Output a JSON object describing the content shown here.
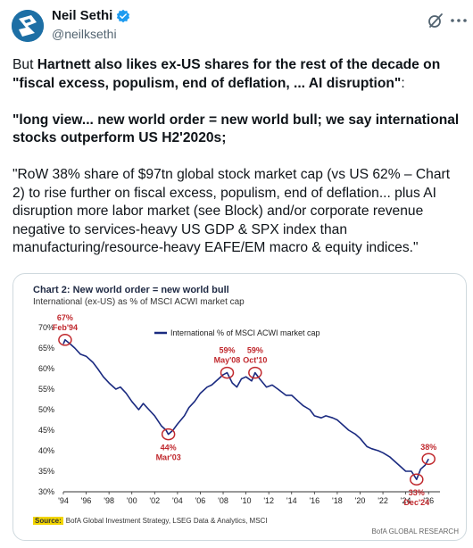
{
  "author": {
    "name": "Neil Sethi",
    "handle": "@neilksethi"
  },
  "tweet": {
    "p1_prefix": "But ",
    "p1_bold": "Hartnett also likes ex-US shares for the rest of the decade on \"fiscal excess, populism, end of deflation, ... AI disruption\"",
    "p1_suffix": ":",
    "p2_bold": "\"long view... new world order = new world bull; we say international stocks outperform US H2'2020s;",
    "p3": "\"RoW 38% share of $97tn global stock market cap (vs US 62% – Chart 2) to rise further on fiscal excess, populism, end of deflation... plus AI disruption more labor market (see Block) and/or corporate revenue negative to services-heavy US GDP & SPX index than manufacturing/resource-heavy EAFE/EM macro & equity indices.\""
  },
  "chart": {
    "title": "Chart 2: New world order = new world bull",
    "subtitle": "International (ex-US) as % of MSCI ACWI market cap",
    "source_label": "Source:",
    "source_text": "BofA Global Investment Strategy, LSEG Data & Analytics, MSCI",
    "credit": "BofA GLOBAL RESEARCH"
  },
  "colors": {
    "line": "#1a2a80",
    "annotation": "#c0282d",
    "verified": "#1d9bf0",
    "source_highlight": "#f2d500"
  },
  "chart_data": {
    "type": "line",
    "title": "Chart 2: New world order = new world bull",
    "subtitle": "International (ex-US) as % of MSCI ACWI market cap",
    "series": [
      {
        "name": "International % of MSCI ACWI market cap",
        "points": [
          [
            1994.0,
            66
          ],
          [
            1994.15,
            67
          ],
          [
            1994.6,
            66
          ],
          [
            1995.0,
            65
          ],
          [
            1995.5,
            63.5
          ],
          [
            1996.0,
            63
          ],
          [
            1996.6,
            61.5
          ],
          [
            1997.0,
            60
          ],
          [
            1997.5,
            58
          ],
          [
            1998.0,
            56.5
          ],
          [
            1998.6,
            55
          ],
          [
            1999.0,
            55.5
          ],
          [
            1999.5,
            54
          ],
          [
            2000.0,
            52
          ],
          [
            2000.6,
            50
          ],
          [
            2001.0,
            51.5
          ],
          [
            2001.5,
            50
          ],
          [
            2002.0,
            48.5
          ],
          [
            2002.6,
            46
          ],
          [
            2003.0,
            45
          ],
          [
            2003.2,
            44
          ],
          [
            2003.6,
            45
          ],
          [
            2004.0,
            46.5
          ],
          [
            2004.6,
            48.5
          ],
          [
            2005.0,
            50.5
          ],
          [
            2005.5,
            52
          ],
          [
            2006.0,
            54
          ],
          [
            2006.6,
            55.5
          ],
          [
            2007.0,
            56
          ],
          [
            2007.6,
            57.5
          ],
          [
            2008.0,
            58.5
          ],
          [
            2008.35,
            59
          ],
          [
            2008.8,
            56.5
          ],
          [
            2009.2,
            55.5
          ],
          [
            2009.6,
            57.5
          ],
          [
            2010.0,
            58
          ],
          [
            2010.5,
            57
          ],
          [
            2010.8,
            59
          ],
          [
            2011.2,
            57.5
          ],
          [
            2011.8,
            55.5
          ],
          [
            2012.3,
            56
          ],
          [
            2012.8,
            55
          ],
          [
            2013.5,
            53.5
          ],
          [
            2014.0,
            53.5
          ],
          [
            2014.6,
            52
          ],
          [
            2015.0,
            51
          ],
          [
            2015.6,
            50
          ],
          [
            2016.0,
            48.5
          ],
          [
            2016.6,
            48
          ],
          [
            2017.0,
            48.5
          ],
          [
            2017.6,
            48
          ],
          [
            2018.0,
            47.5
          ],
          [
            2018.6,
            46
          ],
          [
            2019.0,
            45
          ],
          [
            2019.6,
            44
          ],
          [
            2020.0,
            43
          ],
          [
            2020.6,
            41
          ],
          [
            2021.0,
            40.5
          ],
          [
            2021.6,
            40
          ],
          [
            2022.0,
            39.5
          ],
          [
            2022.6,
            38.5
          ],
          [
            2023.0,
            37.5
          ],
          [
            2023.6,
            36
          ],
          [
            2024.0,
            35
          ],
          [
            2024.5,
            35
          ],
          [
            2024.95,
            33
          ],
          [
            2025.3,
            35.5
          ],
          [
            2025.7,
            36.5
          ],
          [
            2026.0,
            38
          ]
        ]
      }
    ],
    "xlim": [
      1994,
      2027
    ],
    "ylim": [
      30,
      70
    ],
    "x_ticks": [
      "'94",
      "'96",
      "'98",
      "'00",
      "'02",
      "'04",
      "'06",
      "'08",
      "'10",
      "'12",
      "'14",
      "'16",
      "'18",
      "'20",
      "'22",
      "'24",
      "'26"
    ],
    "y_ticks": [
      "30%",
      "35%",
      "40%",
      "45%",
      "50%",
      "55%",
      "60%",
      "65%",
      "70%"
    ],
    "annotations": [
      {
        "x": 1994.15,
        "y": 67,
        "value": "67%",
        "label": "Feb'94",
        "pos": "above"
      },
      {
        "x": 2003.2,
        "y": 44,
        "value": "44%",
        "label": "Mar'03",
        "pos": "below"
      },
      {
        "x": 2008.35,
        "y": 59,
        "value": "59%",
        "label": "May'08",
        "pos": "above"
      },
      {
        "x": 2010.8,
        "y": 59,
        "value": "59%",
        "label": "Oct'10",
        "pos": "above"
      },
      {
        "x": 2024.95,
        "y": 33,
        "value": "33%",
        "label": "Dec'24",
        "pos": "below"
      },
      {
        "x": 2026.0,
        "y": 38,
        "value": "38%",
        "label": "",
        "pos": "above"
      }
    ],
    "legend": "top-center",
    "grid": false
  }
}
